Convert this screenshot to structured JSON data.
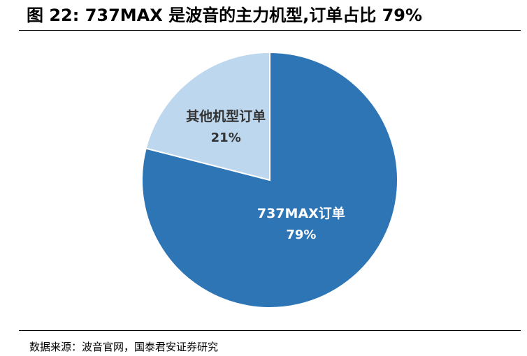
{
  "figure": {
    "title": "图 22: 737MAX 是波音的主力机型,订单占比 79%",
    "source": "数据来源：波音官网，国泰君安证券研究"
  },
  "chart_data": {
    "type": "pie",
    "title": "",
    "slices": [
      {
        "label": "737MAX订单",
        "value": 79,
        "value_label": "79%",
        "color": "#2E75B6",
        "text_color": "#ffffff"
      },
      {
        "label": "其他机型订单",
        "value": 21,
        "value_label": "21%",
        "color": "#BDD7EE",
        "text_color": "#333333"
      }
    ],
    "start_angle_deg": 0,
    "direction": "clockwise",
    "legend": "none"
  }
}
